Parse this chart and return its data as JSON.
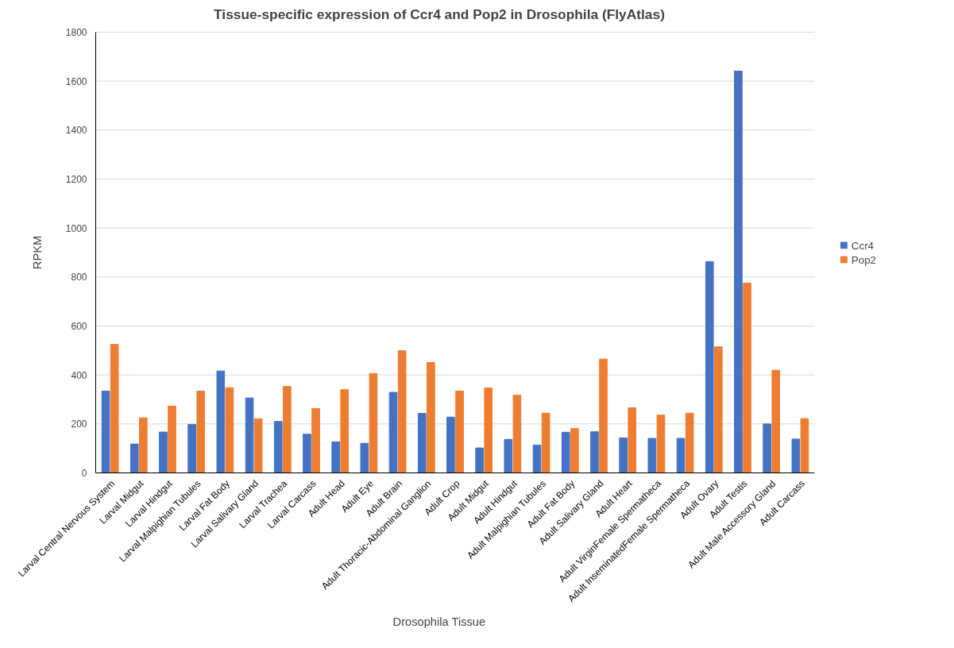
{
  "chart_data": {
    "type": "bar",
    "title": "Tissue-specific expression of Ccr4 and Pop2 in Drosophila (FlyAtlas)",
    "xlabel": "Drosophila Tissue",
    "ylabel": "RPKM",
    "categories": [
      "Larval Central Nervous System",
      "Larval Midgut",
      "Larval Hindgut",
      "Larval Malpighian Tubules",
      "Larval Fat Body",
      "Larval Salivary Gland",
      "Larval Trachea",
      "Larval Carcass",
      "Adult Head",
      "Adult Eye",
      "Adult Brain",
      "Adult Thoracic-Abdominal Ganglion",
      "Adult Crop",
      "Adult Midgut",
      "Adult Hindgut",
      "Adult Malpighian Tubules",
      "Adult Fat Body",
      "Adult Salivary Gland",
      "Adult Heart",
      "Adult VirginFemale Spermatheca",
      "Adult InseminatedFemale Spermatheca",
      "Adult Ovary",
      "Adult Testis",
      "Adult Male Accessory Gland",
      "Adult Carcass"
    ],
    "series": [
      {
        "name": "Ccr4",
        "color": "#4472c4",
        "values": [
          334,
          118,
          167,
          198,
          416,
          306,
          210,
          158,
          127,
          121,
          329,
          243,
          228,
          102,
          137,
          114,
          166,
          168,
          143,
          141,
          141,
          863,
          1641,
          200,
          138
        ]
      },
      {
        "name": "Pop2",
        "color": "#ed7d31",
        "values": [
          525,
          225,
          273,
          334,
          348,
          221,
          353,
          263,
          340,
          406,
          499,
          451,
          334,
          347,
          317,
          244,
          181,
          465,
          266,
          236,
          244,
          515,
          775,
          419,
          222
        ]
      }
    ],
    "ylim": [
      0,
      1800
    ],
    "yticks": [
      0,
      200,
      400,
      600,
      800,
      1000,
      1200,
      1400,
      1600,
      1800
    ],
    "grid": "y",
    "legend": "right"
  }
}
